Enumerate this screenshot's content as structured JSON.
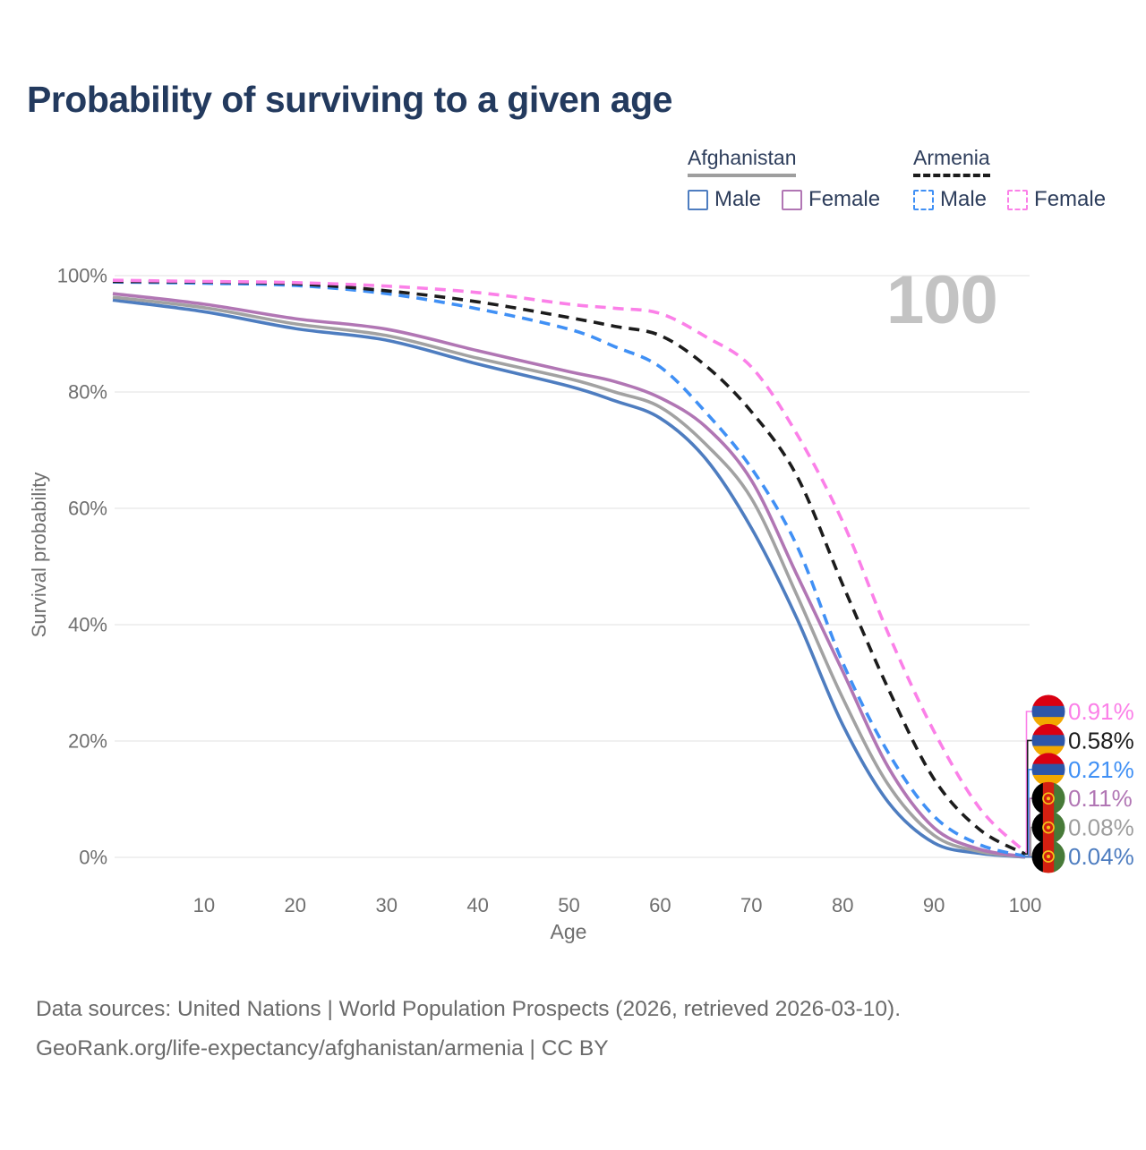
{
  "title": "Probability of surviving to a given age",
  "watermark": "100",
  "legend": {
    "groups": [
      {
        "country": "Afghanistan",
        "underline_style": "solid",
        "underline_color": "#9e9e9e",
        "items": [
          {
            "label": "Male",
            "color": "#4e7dc0",
            "dashed": false
          },
          {
            "label": "Female",
            "color": "#b176b4",
            "dashed": false
          }
        ]
      },
      {
        "country": "Armenia",
        "underline_style": "dashed",
        "underline_color": "#1c1c1c",
        "items": [
          {
            "label": "Male",
            "color": "#4090f5",
            "dashed": true
          },
          {
            "label": "Female",
            "color": "#fb80e8",
            "dashed": true
          }
        ]
      }
    ]
  },
  "chart_data": {
    "type": "line",
    "title": "Probability of surviving to a given age",
    "xlabel": "Age",
    "ylabel": "Survival probability",
    "xlim": [
      0,
      100
    ],
    "ylim": [
      0,
      100
    ],
    "grid": "horizontal",
    "legend_position": "top-right",
    "x_ticks": [
      {
        "value": 10,
        "label": "10"
      },
      {
        "value": 20,
        "label": "20"
      },
      {
        "value": 30,
        "label": "30"
      },
      {
        "value": 40,
        "label": "40"
      },
      {
        "value": 50,
        "label": "50"
      },
      {
        "value": 60,
        "label": "60"
      },
      {
        "value": 70,
        "label": "70"
      },
      {
        "value": 80,
        "label": "80"
      },
      {
        "value": 90,
        "label": "90"
      },
      {
        "value": 100,
        "label": "100"
      }
    ],
    "y_ticks": [
      {
        "value": 0,
        "label": "0%"
      },
      {
        "value": 20,
        "label": "20%"
      },
      {
        "value": 40,
        "label": "40%"
      },
      {
        "value": 60,
        "label": "60%"
      },
      {
        "value": 80,
        "label": "80%"
      },
      {
        "value": 100,
        "label": "100%"
      }
    ],
    "ages": [
      0,
      10,
      20,
      30,
      40,
      50,
      55,
      60,
      65,
      70,
      75,
      80,
      85,
      90,
      95,
      100
    ],
    "series": [
      {
        "id": "afghanistan-male",
        "name": "Afghanistan — Male",
        "color": "#4e7dc0",
        "label_color": "#4e7dc0",
        "dashed": false,
        "flag": "afghanistan",
        "end_label": "0.04%",
        "values": [
          95.8,
          93.8,
          90.9,
          88.9,
          84.8,
          81.0,
          78.5,
          75.5,
          68.5,
          56.6,
          41.0,
          22.8,
          9.5,
          2.5,
          0.7,
          0.04
        ]
      },
      {
        "id": "afghanistan-all",
        "name": "Afghanistan — All",
        "color": "#a2a2a2",
        "label_color": "#9e9e9e",
        "dashed": false,
        "flag": "afghanistan",
        "end_label": "0.08%",
        "values": [
          96.3,
          94.5,
          91.7,
          89.7,
          85.8,
          82.3,
          80.0,
          77.4,
          71.0,
          61.7,
          45.0,
          27.4,
          12.5,
          3.8,
          1.0,
          0.08
        ]
      },
      {
        "id": "afghanistan-female",
        "name": "Afghanistan — Female",
        "color": "#b176b4",
        "label_color": "#b176b4",
        "dashed": false,
        "flag": "afghanistan",
        "end_label": "0.11%",
        "values": [
          96.9,
          95.1,
          92.6,
          90.8,
          87.1,
          83.5,
          81.8,
          79.0,
          74.0,
          64.8,
          48.5,
          32.0,
          15.5,
          5.1,
          1.4,
          0.11
        ]
      },
      {
        "id": "armenia-male",
        "name": "Armenia — Male",
        "color": "#4090f5",
        "label_color": "#4090f5",
        "dashed": true,
        "flag": "armenia",
        "end_label": "0.21%",
        "values": [
          98.9,
          98.7,
          98.3,
          96.9,
          94.3,
          90.8,
          87.8,
          84.3,
          76.5,
          66.9,
          53.5,
          33.5,
          18.0,
          7.1,
          2.2,
          0.21
        ]
      },
      {
        "id": "armenia-all",
        "name": "Armenia — All",
        "color": "#1c1c1c",
        "label_color": "#1c1c1c",
        "dashed": true,
        "flag": "armenia",
        "end_label": "0.58%",
        "values": [
          99.0,
          98.9,
          98.6,
          97.4,
          95.5,
          92.8,
          91.3,
          89.7,
          84.5,
          76.6,
          65.5,
          46.9,
          29.0,
          13.5,
          4.8,
          0.58
        ]
      },
      {
        "id": "armenia-female",
        "name": "Armenia — Female",
        "color": "#fb80e8",
        "label_color": "#fb80e8",
        "dashed": true,
        "flag": "armenia",
        "end_label": "0.91%",
        "values": [
          99.2,
          99.0,
          98.8,
          98.2,
          97.1,
          95.1,
          94.4,
          93.5,
          89.5,
          84.3,
          72.7,
          57.7,
          38.5,
          21.7,
          8.5,
          0.91
        ]
      }
    ],
    "flag_colors": {
      "armenia": {
        "stripes": [
          "#D90012",
          "#2d56a8",
          "#F2A800"
        ]
      },
      "afghanistan": {
        "stripes": [
          "#000000",
          "#d32011",
          "#477a38"
        ],
        "emblem": "#f5c118"
      }
    }
  },
  "footer": {
    "line1": "Data sources: United Nations | World Population Prospects (2026, retrieved 2026-03-10).",
    "line2": "GeoRank.org/life-expectancy/afghanistan/armenia | CC BY"
  }
}
